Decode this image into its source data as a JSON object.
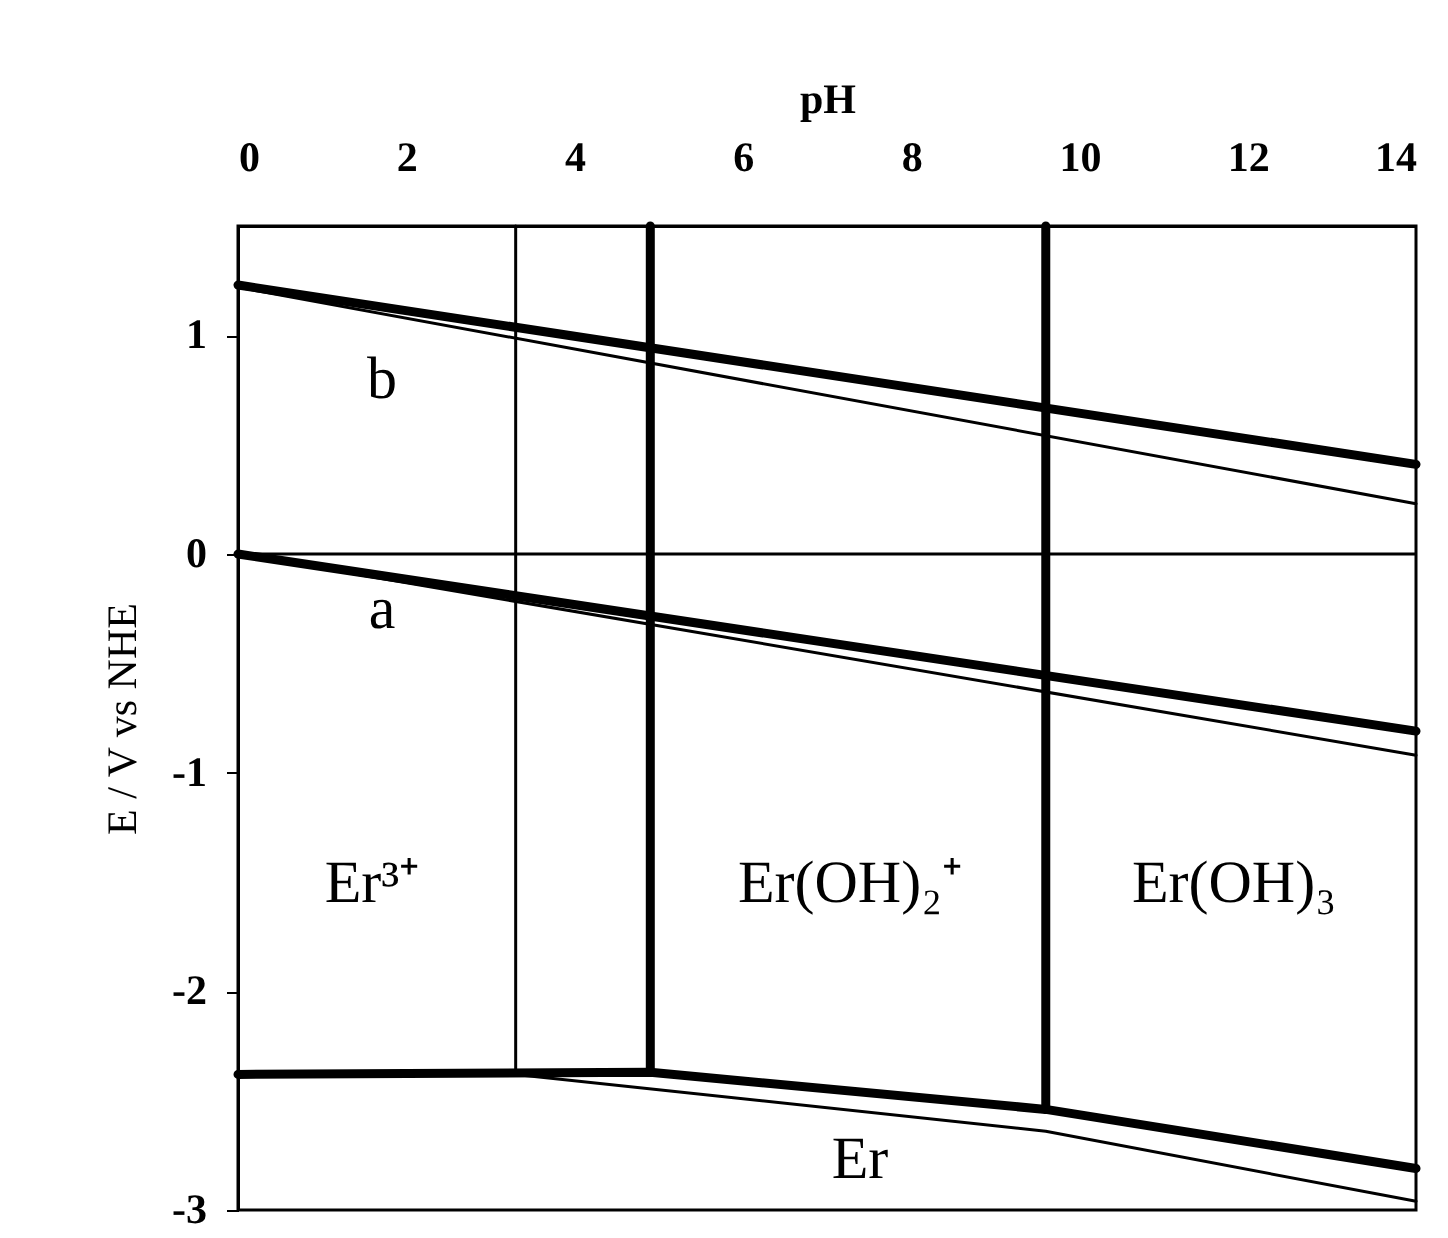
{
  "chart_data": {
    "type": "line",
    "xlabel": "pH",
    "ylabel": "E / V vs NHE",
    "xlim": [
      0,
      14
    ],
    "xticks": [
      0,
      2,
      4,
      6,
      8,
      10,
      12,
      14
    ],
    "ylim": [
      -3,
      1.5
    ],
    "yticks": [
      1,
      0,
      -1,
      -2,
      -3
    ],
    "series": [
      {
        "color": "#000000",
        "x": [
          0,
          14
        ],
        "values": [
          1.22,
          0.23
        ]
      },
      {
        "color": "#000000",
        "x": [
          0,
          14
        ],
        "values": [
          1.23,
          0.41
        ]
      },
      {
        "color": "#000000",
        "x": [
          0,
          14
        ],
        "values": [
          0,
          -0.92
        ]
      },
      {
        "color": "#000000",
        "x": [
          0,
          14
        ],
        "values": [
          0,
          -0.81
        ]
      },
      {
        "color": "#000000",
        "x": [
          0,
          3.3,
          9.6,
          14
        ],
        "values": [
          -2.38,
          -2.38,
          -2.64,
          -2.96
        ]
      },
      {
        "color": "#000000",
        "x": [
          0,
          4.9,
          9.6,
          14
        ],
        "values": [
          -2.38,
          -2.37,
          -2.54,
          -2.81
        ]
      },
      {
        "color": "#000000",
        "x": [
          3.3,
          3.3
        ],
        "values": [
          -2.38,
          1.5
        ]
      },
      {
        "color": "#000000",
        "x": [
          4.9,
          4.9
        ],
        "values": [
          -2.37,
          1.5
        ]
      },
      {
        "color": "#000000",
        "x": [
          9.6,
          9.6
        ],
        "values": [
          -2.54,
          1.5
        ]
      }
    ],
    "ref_lines": [
      {
        "axis": "y",
        "value": 0,
        "color": "#000000"
      }
    ],
    "annotations": [
      "b",
      "a",
      "Er³⁺",
      "Er(OH)₂⁺",
      "Er(OH)₃",
      "Er"
    ],
    "marker": "none",
    "line_style": "solid"
  }
}
